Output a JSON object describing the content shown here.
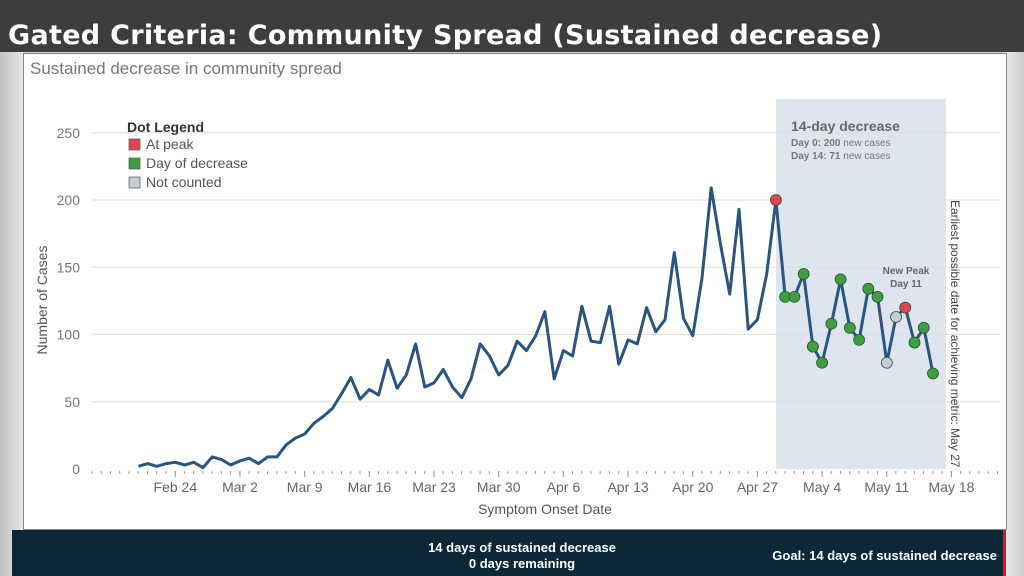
{
  "header": {
    "title": "Gated Criteria: Community Spread (Sustained decrease)"
  },
  "chart_data": {
    "type": "line",
    "title": "Sustained decrease in community spread",
    "xlabel": "Symptom Onset Date",
    "ylabel": "Number of Cases",
    "ylim": [
      0,
      250
    ],
    "yticks": [
      0,
      50,
      100,
      150,
      200,
      250
    ],
    "xtick_labels": [
      "Feb 24",
      "Mar 2",
      "Mar 9",
      "Mar 16",
      "Mar 23",
      "Mar 30",
      "Apr 6",
      "Apr 13",
      "Apr 20",
      "Apr 27",
      "May 4",
      "May 11",
      "May 18"
    ],
    "x_start": "Feb 20",
    "x_end": "May 18",
    "values": [
      2,
      4,
      2,
      4,
      5,
      3,
      5,
      1,
      9,
      7,
      3,
      6,
      8,
      4,
      9,
      9,
      18,
      23,
      26,
      34,
      39,
      45,
      56,
      68,
      52,
      59,
      55,
      81,
      60,
      70,
      93,
      61,
      64,
      74,
      61,
      53,
      67,
      93,
      84,
      70,
      77,
      95,
      88,
      99,
      117,
      67,
      88,
      84,
      121,
      95,
      94,
      121,
      78,
      96,
      93,
      120,
      102,
      111,
      161,
      112,
      99,
      142,
      209,
      167,
      130,
      193,
      104,
      111,
      145,
      200,
      128,
      128,
      145,
      91,
      79,
      108,
      141,
      105,
      96,
      134,
      128,
      79,
      113,
      120,
      94,
      105,
      71
    ],
    "dot_start_index": 69,
    "dots": [
      "peak",
      "decrease",
      "decrease",
      "decrease",
      "decrease",
      "decrease",
      "decrease",
      "decrease",
      "decrease",
      "decrease",
      "decrease",
      "decrease",
      "not_counted",
      "not_counted",
      "peak",
      "decrease",
      "decrease",
      "decrease"
    ],
    "legend": {
      "title": "Dot Legend",
      "placement": "top-left",
      "items": [
        {
          "key": "peak",
          "label": "At peak",
          "color": "#e0474c"
        },
        {
          "key": "decrease",
          "label": "Day of decrease",
          "color": "#3f9e3f"
        },
        {
          "key": "not_counted",
          "label": "Not counted",
          "color": "#c5ccd3"
        }
      ]
    },
    "line_color": "#2a5580",
    "shaded_region": {
      "title": "14-day decrease",
      "day0_label": "Day 0:",
      "day0_value": "200",
      "day0_suffix": "new cases",
      "day14_label": "Day 14:",
      "day14_value": "71",
      "day14_suffix": "new cases",
      "color": "#dfe5ee"
    },
    "annotation": {
      "line1": "New Peak",
      "line2": "Day 11",
      "index": 83
    },
    "vertical_note": "Earliest possible date for achieving metric: May 27"
  },
  "footer": {
    "status_line1": "14 days of sustained decrease",
    "status_line2": "0 days remaining",
    "goal": "Goal: 14 days of sustained decrease"
  }
}
